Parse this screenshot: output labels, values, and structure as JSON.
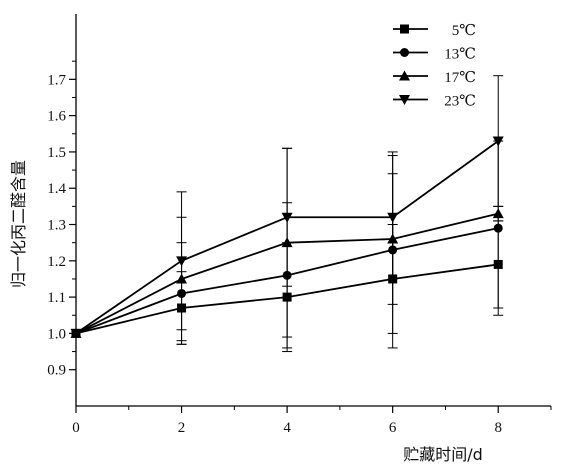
{
  "chart_data": {
    "type": "line",
    "xlabel": "贮藏时间/d",
    "ylabel": "归一化丙二醛含量",
    "xlim": [
      0,
      9.0
    ],
    "ylim": [
      0.8,
      1.88
    ],
    "x_ticks": [
      0,
      2,
      4,
      6,
      8
    ],
    "y_ticks": [
      0.9,
      1.0,
      1.1,
      1.2,
      1.3,
      1.4,
      1.5,
      1.6,
      1.7
    ],
    "x_tick_labels": [
      "0",
      "2",
      "4",
      "6",
      "8"
    ],
    "y_tick_labels": [
      "0.9",
      "1.0",
      "1.1",
      "1.2",
      "1.3",
      "1.4",
      "1.5",
      "1.6",
      "1.7"
    ],
    "grid": false,
    "legend_position": "top-right",
    "x": [
      0,
      2,
      4,
      6,
      8
    ],
    "series": [
      {
        "name": "5℃",
        "marker": "square",
        "values": [
          1.0,
          1.07,
          1.1,
          1.15,
          1.19
        ],
        "error": [
          0,
          0.1,
          0.15,
          0.15,
          0.12
        ]
      },
      {
        "name": "13℃",
        "marker": "circle",
        "values": [
          1.0,
          1.11,
          1.16,
          1.23,
          1.29
        ],
        "error": [
          0,
          0.14,
          0.2,
          0.27,
          0.24
        ]
      },
      {
        "name": "17℃",
        "marker": "triangle-up",
        "values": [
          1.0,
          1.15,
          1.25,
          1.26,
          1.33
        ],
        "error": [
          0,
          0.17,
          0.26,
          0.18,
          0.02
        ]
      },
      {
        "name": "23℃",
        "marker": "triangle-down",
        "values": [
          1.0,
          1.2,
          1.32,
          1.32,
          1.53
        ],
        "error": [
          0,
          0.19,
          0.19,
          0.17,
          0.18
        ]
      }
    ]
  }
}
